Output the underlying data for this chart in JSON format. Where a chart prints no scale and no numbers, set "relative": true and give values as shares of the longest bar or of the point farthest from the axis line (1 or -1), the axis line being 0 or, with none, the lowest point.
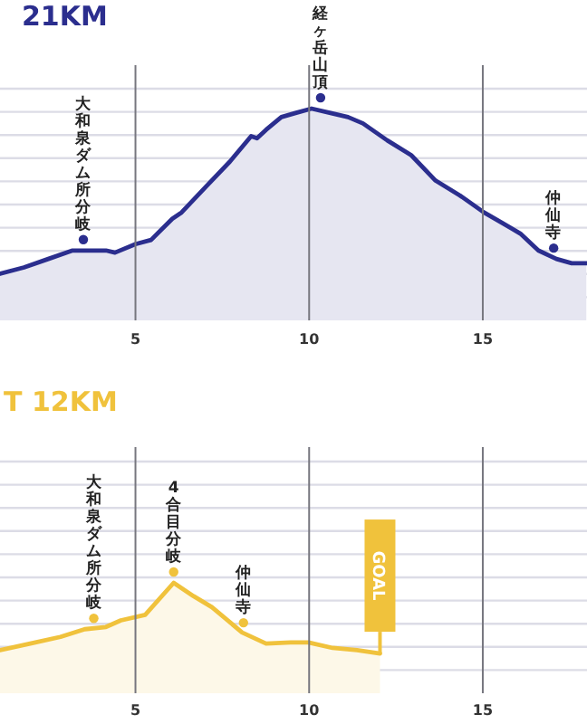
{
  "chart_data": [
    {
      "type": "area",
      "title": "21KM",
      "relative": true,
      "xlim": [
        1.1,
        18
      ],
      "xticks": [
        5,
        10,
        15
      ],
      "grid": true,
      "series": [
        {
          "color": "#2b2e8e",
          "x": [
            1.1,
            1.79,
            2.49,
            3.19,
            3.71,
            4.15,
            4.41,
            5.0,
            5.45,
            6.06,
            6.33,
            7.02,
            7.72,
            8.33,
            8.5,
            8.76,
            9.2,
            9.63,
            10.07,
            10.59,
            11.12,
            11.55,
            12.25,
            12.94,
            13.64,
            14.34,
            15.03,
            15.56,
            16.08,
            16.6,
            17.12,
            17.56,
            17.98
          ],
          "values": [
            0.22,
            0.25,
            0.29,
            0.33,
            0.33,
            0.33,
            0.32,
            0.36,
            0.38,
            0.48,
            0.51,
            0.63,
            0.75,
            0.87,
            0.86,
            0.9,
            0.96,
            0.98,
            1,
            0.98,
            0.96,
            0.93,
            0.85,
            0.78,
            0.66,
            0.59,
            0.51,
            0.46,
            0.41,
            0.33,
            0.29,
            0.27,
            0.27
          ]
        }
      ],
      "annotations": [
        {
          "text": "大和泉ダム所分岐",
          "x": 3.5,
          "y": 0.33
        },
        {
          "text": "経ヶ岳山頂",
          "x": 10.33,
          "y": 1
        },
        {
          "text": "仲仙寺",
          "x": 17.04,
          "y": 0.29
        }
      ]
    },
    {
      "type": "area",
      "title": "T 12KM",
      "relative": true,
      "xlim": [
        1.1,
        18
      ],
      "xticks": [
        5,
        10,
        15
      ],
      "grid": true,
      "series": [
        {
          "color": "#f0c23c",
          "x": [
            1.1,
            1.97,
            2.84,
            3.54,
            4.15,
            4.58,
            5.28,
            6.1,
            6.67,
            7.2,
            8.07,
            8.76,
            9.46,
            9.98,
            10.68,
            11.38,
            12.04
          ],
          "values": [
            0.39,
            0.45,
            0.51,
            0.58,
            0.6,
            0.66,
            0.71,
            1,
            0.88,
            0.78,
            0.55,
            0.45,
            0.46,
            0.46,
            0.41,
            0.39,
            0.36
          ]
        }
      ],
      "annotations": [
        {
          "text": "大和泉ダム所分岐",
          "x": 3.8,
          "y": 0.58
        },
        {
          "text": "4合目分岐",
          "x": 6.1,
          "y": 1
        },
        {
          "text": "仲仙寺",
          "x": 8.11,
          "y": 0.54
        },
        "GOAL"
      ]
    }
  ]
}
